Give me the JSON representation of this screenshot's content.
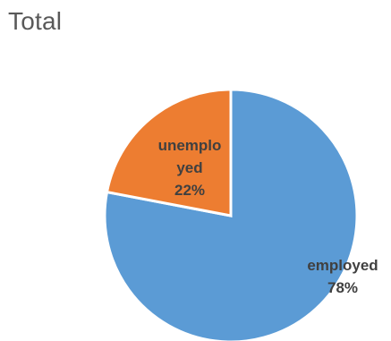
{
  "chart_data": {
    "type": "pie",
    "title": "Total",
    "slices": [
      {
        "name": "employed",
        "label_lines": [
          "employed"
        ],
        "percent_label": "78%",
        "value": 78,
        "color": "#5B9BD5"
      },
      {
        "name": "unemployed",
        "label_lines": [
          "unemplo",
          "yed"
        ],
        "percent_label": "22%",
        "value": 22,
        "color": "#ED7D31"
      }
    ],
    "legend": "none",
    "data_labels": "inside"
  }
}
